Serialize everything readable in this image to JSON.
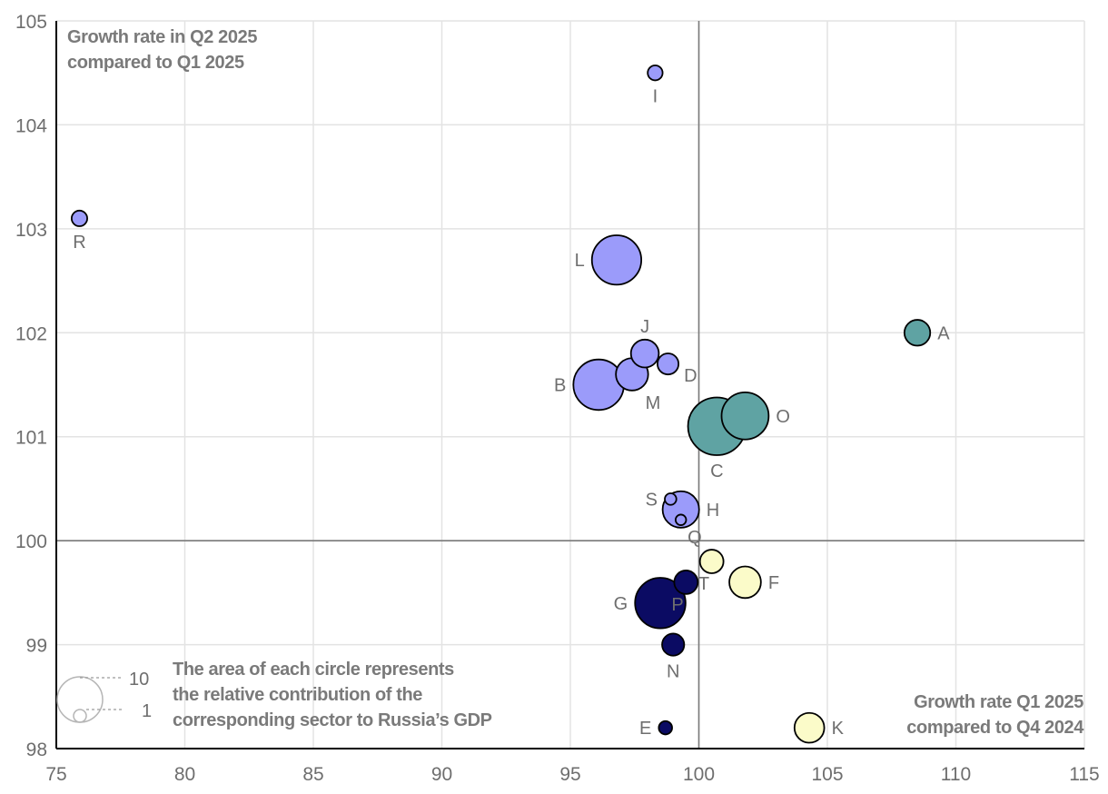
{
  "chart_data": {
    "type": "scatter",
    "subtype": "bubble",
    "xlim": [
      75,
      115
    ],
    "ylim": [
      98,
      105
    ],
    "x_ticks": [
      75,
      80,
      85,
      90,
      95,
      100,
      105,
      110,
      115
    ],
    "y_ticks": [
      98,
      99,
      100,
      101,
      102,
      103,
      104,
      105
    ],
    "reference_lines": {
      "x": 100,
      "y": 100
    },
    "grid": true,
    "ylabel_lines": [
      "Growth rate in Q2 2025",
      "compared to Q1 2025"
    ],
    "xlabel_lines": [
      "Growth rate Q1 2025",
      "compared to Q4 2024"
    ],
    "legend_note_lines": [
      "The area of each circle represents",
      "the relative contribution of the",
      "corresponding sector to Russia’s GDP"
    ],
    "size_legend": [
      {
        "label": "10",
        "size": 10
      },
      {
        "label": "1",
        "size": 1
      }
    ],
    "colors": {
      "purple": "#9b9bfa",
      "teal": "#5fa3a3",
      "navy": "#0b0b63",
      "yellow": "#fbfbc9"
    },
    "points": [
      {
        "id": "A",
        "x": 108.5,
        "y": 102.0,
        "size": 3.0,
        "color": "teal",
        "label_pos": "right"
      },
      {
        "id": "B",
        "x": 96.1,
        "y": 101.5,
        "size": 11.5,
        "color": "purple",
        "label_pos": "left"
      },
      {
        "id": "C",
        "x": 100.7,
        "y": 101.1,
        "size": 15.0,
        "color": "teal",
        "label_pos": "below"
      },
      {
        "id": "D",
        "x": 98.8,
        "y": 101.7,
        "size": 2.0,
        "color": "purple",
        "label_pos": "right-below"
      },
      {
        "id": "E",
        "x": 98.7,
        "y": 98.2,
        "size": 0.8,
        "color": "navy",
        "label_pos": "left"
      },
      {
        "id": "F",
        "x": 101.8,
        "y": 99.6,
        "size": 4.5,
        "color": "yellow",
        "label_pos": "right"
      },
      {
        "id": "G",
        "x": 98.5,
        "y": 99.4,
        "size": 11.5,
        "color": "navy",
        "label_pos": "left"
      },
      {
        "id": "H",
        "x": 99.3,
        "y": 100.3,
        "size": 6.0,
        "color": "purple",
        "label_pos": "right"
      },
      {
        "id": "I",
        "x": 98.3,
        "y": 104.5,
        "size": 1.0,
        "color": "purple",
        "label_pos": "below"
      },
      {
        "id": "J",
        "x": 97.9,
        "y": 101.8,
        "size": 3.5,
        "color": "purple",
        "label_pos": "above"
      },
      {
        "id": "K",
        "x": 104.3,
        "y": 98.2,
        "size": 4.0,
        "color": "yellow",
        "label_pos": "right"
      },
      {
        "id": "L",
        "x": 96.8,
        "y": 102.7,
        "size": 11.0,
        "color": "purple",
        "label_pos": "left"
      },
      {
        "id": "M",
        "x": 97.4,
        "y": 101.6,
        "size": 4.7,
        "color": "purple",
        "label_pos": "below-right"
      },
      {
        "id": "N",
        "x": 99.0,
        "y": 99.0,
        "size": 2.2,
        "color": "navy",
        "label_pos": "below"
      },
      {
        "id": "O",
        "x": 101.8,
        "y": 101.2,
        "size": 10.0,
        "color": "teal",
        "label_pos": "right"
      },
      {
        "id": "P",
        "x": 99.5,
        "y": 99.6,
        "size": 2.5,
        "color": "navy",
        "label_pos": "below-left"
      },
      {
        "id": "Q",
        "x": 99.3,
        "y": 100.2,
        "size": 0.5,
        "color": "purple",
        "label_pos": "below-right"
      },
      {
        "id": "R",
        "x": 75.9,
        "y": 103.1,
        "size": 1.1,
        "color": "purple",
        "label_pos": "below"
      },
      {
        "id": "S",
        "x": 98.9,
        "y": 100.4,
        "size": 0.6,
        "color": "purple",
        "label_pos": "left"
      },
      {
        "id": "T",
        "x": 100.5,
        "y": 99.8,
        "size": 2.5,
        "color": "yellow",
        "label_pos": "below-left"
      }
    ]
  }
}
